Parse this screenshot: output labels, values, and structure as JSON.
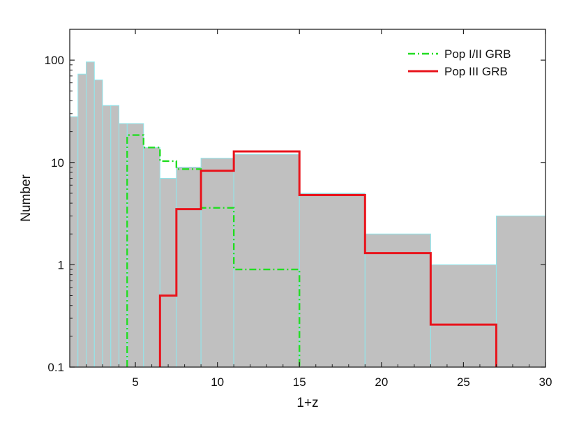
{
  "chart_data": {
    "type": "bar",
    "xlabel": "1+z",
    "ylabel": "Number",
    "xlim": [
      1,
      30
    ],
    "ylim": [
      0.1,
      200
    ],
    "yscale": "log",
    "grid": false,
    "legend_position": "top-right",
    "x_ticks": [
      5,
      10,
      15,
      20,
      25,
      30
    ],
    "y_ticks": [
      {
        "value": 0.1,
        "label": "0.1"
      },
      {
        "value": 1,
        "label": "1"
      },
      {
        "value": 10,
        "label": "10"
      },
      {
        "value": 100,
        "label": "100"
      }
    ],
    "histogram": {
      "fill_color": "#c0c0c0",
      "edge_color": "#8fe8ee",
      "bins": [
        {
          "x0": 1.0,
          "x1": 1.5,
          "value": 28
        },
        {
          "x0": 1.5,
          "x1": 2.0,
          "value": 73
        },
        {
          "x0": 2.0,
          "x1": 2.5,
          "value": 96
        },
        {
          "x0": 2.5,
          "x1": 3.0,
          "value": 64
        },
        {
          "x0": 3.0,
          "x1": 3.5,
          "value": 36
        },
        {
          "x0": 3.5,
          "x1": 4.0,
          "value": 36
        },
        {
          "x0": 4.0,
          "x1": 4.5,
          "value": 24
        },
        {
          "x0": 4.5,
          "x1": 5.5,
          "value": 24
        },
        {
          "x0": 5.5,
          "x1": 6.5,
          "value": 14
        },
        {
          "x0": 6.5,
          "x1": 7.5,
          "value": 7
        },
        {
          "x0": 7.5,
          "x1": 9.0,
          "value": 9
        },
        {
          "x0": 9.0,
          "x1": 11.0,
          "value": 11
        },
        {
          "x0": 11.0,
          "x1": 15.0,
          "value": 12
        },
        {
          "x0": 15.0,
          "x1": 19.0,
          "value": 5
        },
        {
          "x0": 19.0,
          "x1": 23.0,
          "value": 2
        },
        {
          "x0": 23.0,
          "x1": 27.0,
          "value": 1
        },
        {
          "x0": 27.0,
          "x1": 30.0,
          "value": 3
        }
      ]
    },
    "series": [
      {
        "name": "Pop I/II GRB",
        "color": "#22dd22",
        "style": "dash-dot",
        "bins": [
          {
            "x0": 4.5,
            "x1": 5.5,
            "value": 18.5
          },
          {
            "x0": 5.5,
            "x1": 6.5,
            "value": 14
          },
          {
            "x0": 6.5,
            "x1": 7.5,
            "value": 10.3
          },
          {
            "x0": 7.5,
            "x1": 9.0,
            "value": 8.6
          },
          {
            "x0": 9.0,
            "x1": 11.0,
            "value": 3.6
          },
          {
            "x0": 11.0,
            "x1": 15.0,
            "value": 0.9
          }
        ]
      },
      {
        "name": "Pop III GRB",
        "color": "#e8141c",
        "style": "solid",
        "bins": [
          {
            "x0": 6.5,
            "x1": 7.5,
            "value": 0.5
          },
          {
            "x0": 7.5,
            "x1": 9.0,
            "value": 3.5
          },
          {
            "x0": 9.0,
            "x1": 11.0,
            "value": 8.3
          },
          {
            "x0": 11.0,
            "x1": 15.0,
            "value": 12.8
          },
          {
            "x0": 15.0,
            "x1": 19.0,
            "value": 4.8
          },
          {
            "x0": 19.0,
            "x1": 23.0,
            "value": 1.3
          },
          {
            "x0": 23.0,
            "x1": 27.0,
            "value": 0.26
          }
        ]
      }
    ]
  }
}
